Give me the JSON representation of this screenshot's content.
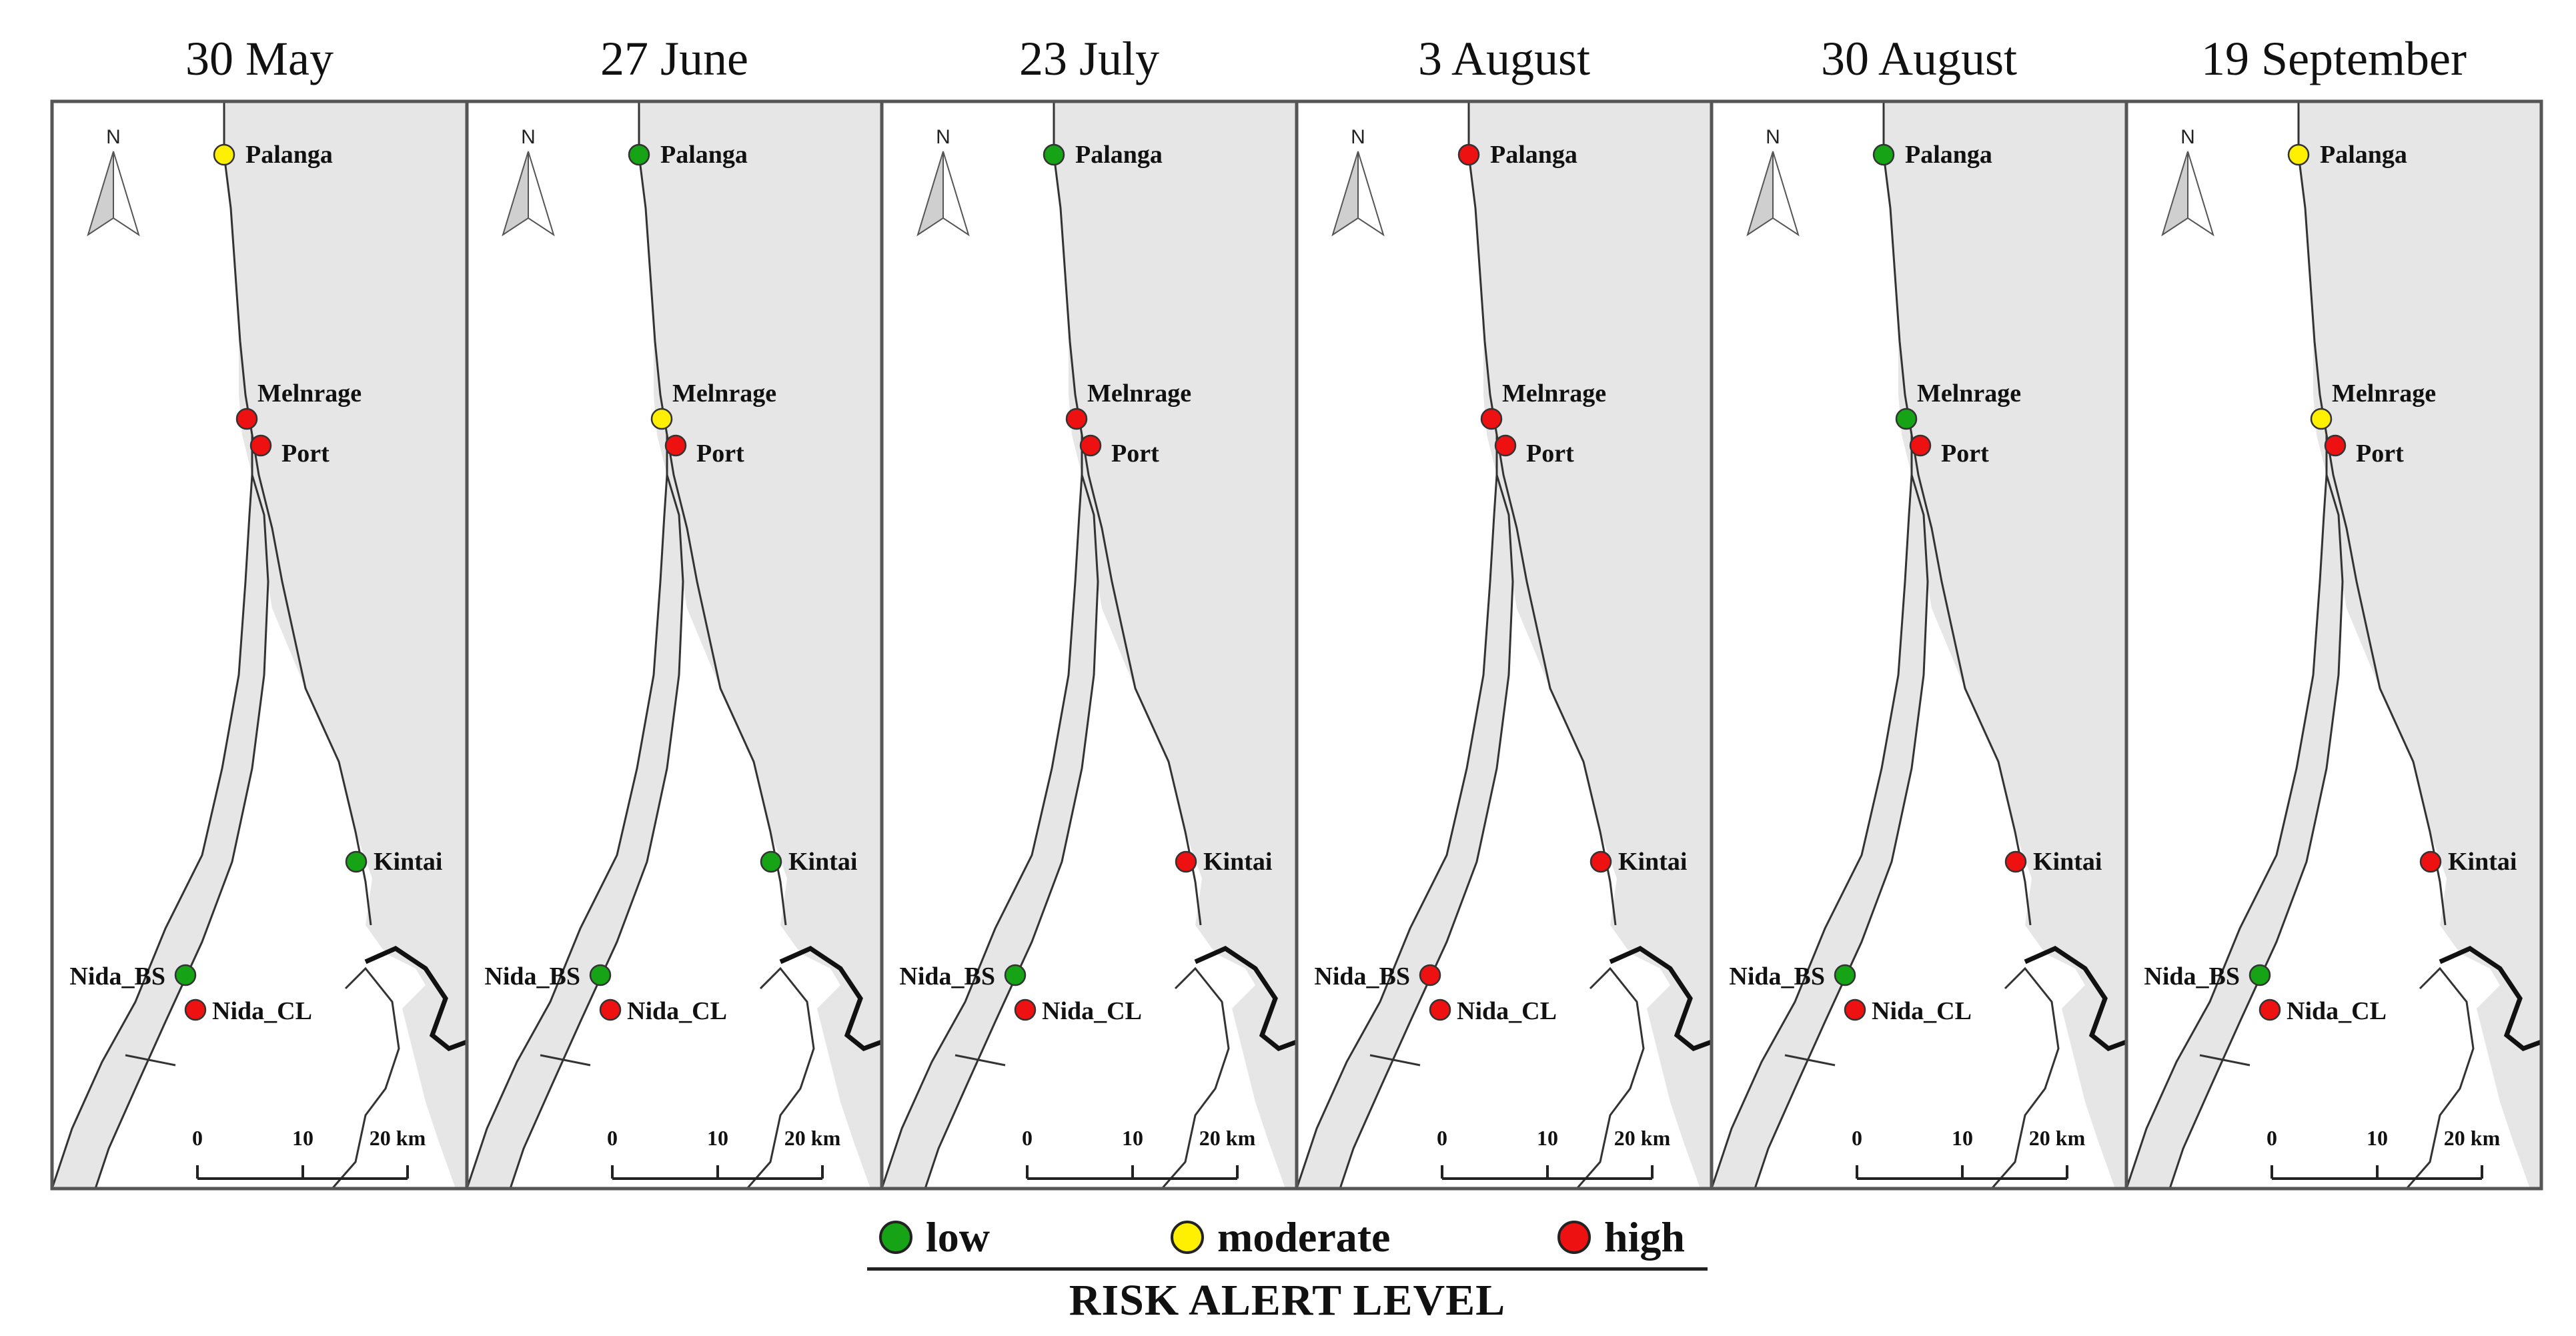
{
  "colors": {
    "low": "#16a316",
    "moderate": "#ffef00",
    "high": "#ee1111",
    "sea": "#e6e6e6",
    "land": "#ffffff",
    "outline": "#333333"
  },
  "panels": [
    {
      "date": "30 May",
      "levels": {
        "Palanga": "moderate",
        "Melnrage": "high",
        "Port": "high",
        "Kintai": "low",
        "Nida_BS": "low",
        "Nida_CL": "high"
      }
    },
    {
      "date": "27 June",
      "levels": {
        "Palanga": "low",
        "Melnrage": "moderate",
        "Port": "high",
        "Kintai": "low",
        "Nida_BS": "low",
        "Nida_CL": "high"
      }
    },
    {
      "date": "23 July",
      "levels": {
        "Palanga": "low",
        "Melnrage": "high",
        "Port": "high",
        "Kintai": "high",
        "Nida_BS": "low",
        "Nida_CL": "high"
      }
    },
    {
      "date": "3 August",
      "levels": {
        "Palanga": "high",
        "Melnrage": "high",
        "Port": "high",
        "Kintai": "high",
        "Nida_BS": "high",
        "Nida_CL": "high"
      }
    },
    {
      "date": "30 August",
      "levels": {
        "Palanga": "low",
        "Melnrage": "low",
        "Port": "high",
        "Kintai": "high",
        "Nida_BS": "low",
        "Nida_CL": "high"
      }
    },
    {
      "date": "19 September",
      "levels": {
        "Palanga": "moderate",
        "Melnrage": "moderate",
        "Port": "high",
        "Kintai": "high",
        "Nida_BS": "low",
        "Nida_CL": "high"
      }
    }
  ],
  "stations": [
    "Palanga",
    "Melnrage",
    "Port",
    "Kintai",
    "Nida_BS",
    "Nida_CL"
  ],
  "north_arrow_label": "N",
  "scale_bar": {
    "ticks": [
      "0",
      "10",
      "20 km"
    ]
  },
  "legend": {
    "items": [
      {
        "level": "low",
        "label": "low"
      },
      {
        "level": "moderate",
        "label": "moderate"
      },
      {
        "level": "high",
        "label": "high"
      }
    ],
    "title": "RISK ALERT LEVEL"
  }
}
